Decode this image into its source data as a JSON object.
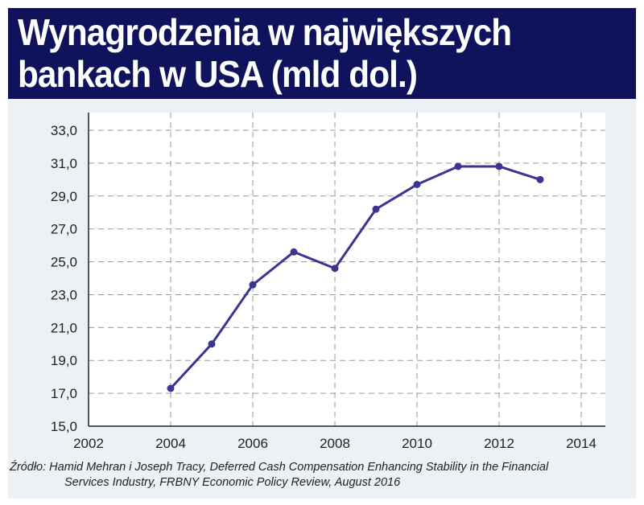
{
  "title_line1": "Wynagrodzenia w największych",
  "title_line2": "bankach w USA (mld dol.)",
  "source_line1": "Źródło: Hamid Mehran i Joseph Tracy, Deferred Cash Compensation Enhancing Stability in the Financial",
  "source_line2": "Services Industry, FRBNY Economic Policy Review, August 2016",
  "colors": {
    "banner": "#0e135c",
    "line": "#3b3590"
  },
  "chart_data": {
    "type": "line",
    "title": "Wynagrodzenia w największych bankach w USA (mld dol.)",
    "x": [
      2004,
      2005,
      2006,
      2007,
      2008,
      2009,
      2010,
      2011,
      2012,
      2013
    ],
    "series": [
      {
        "values": [
          17.3,
          20.0,
          23.6,
          25.6,
          24.6,
          28.2,
          29.7,
          30.8,
          30.8,
          30.0
        ]
      }
    ],
    "xlim": [
      2002,
      2014
    ],
    "ylim": [
      15,
      33
    ],
    "xticks": [
      "2002",
      "2004",
      "2006",
      "2008",
      "2010",
      "2012",
      "2014"
    ],
    "yticks": [
      "15,0",
      "17,0",
      "19,0",
      "21,0",
      "23,0",
      "25,0",
      "27,0",
      "29,0",
      "31,0",
      "33,0"
    ],
    "grid": true
  }
}
